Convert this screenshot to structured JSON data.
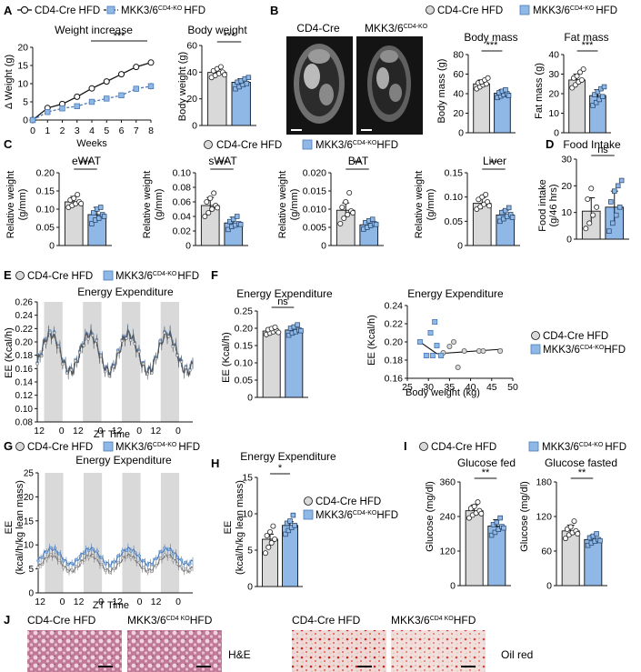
{
  "groups": {
    "ctrl": "CD4-Cre HFD",
    "ko_prefix": "MKK3/6",
    "ko_sup": "CD4-KO",
    "ko_suffix": "HFD",
    "ko_sup_j": "CD4 KO",
    "ctrl_color": "#d9d9d9",
    "ko_color": "#8fb8e6",
    "ko_line_color": "#4a7ab8"
  },
  "panels": {
    "A": {
      "letter": "A",
      "line": {
        "title": "Weight increase",
        "ylabel": "Δ Weight (g)",
        "xlabel": "Weeks",
        "sig": "***",
        "chart_data": {
          "type": "line",
          "x": [
            0,
            1,
            2,
            3,
            4,
            5,
            6,
            7,
            8
          ],
          "ylim": [
            0,
            20
          ],
          "yticks": [
            0,
            5,
            10,
            15,
            20
          ],
          "series": [
            {
              "name": "CD4-Cre HFD",
              "values": [
                0,
                3.3,
                4.4,
                6.4,
                8.7,
                10.6,
                12.6,
                14.6,
                15.8
              ],
              "err": [
                0.3,
                0.4,
                0.5,
                0.5,
                0.6,
                0.7,
                0.7,
                0.8,
                0.8
              ]
            },
            {
              "name": "MKK3/6 CD4-KO HFD",
              "values": [
                0,
                2.2,
                3.2,
                3.8,
                5.0,
                5.9,
                6.8,
                8.6,
                9.3
              ],
              "err": [
                0.3,
                0.3,
                0.4,
                0.4,
                0.5,
                0.6,
                0.6,
                0.8,
                0.9
              ]
            }
          ]
        }
      },
      "bar": {
        "title": "Body weight",
        "ylabel": "Body weight (g)",
        "sig": "***",
        "chart_data": {
          "type": "bar",
          "ylim": [
            0,
            60
          ],
          "yticks": [
            0,
            20,
            40,
            60
          ],
          "values": [
            39.8,
            32.4
          ],
          "err": [
            2.2,
            2.6
          ],
          "points": [
            [
              36,
              37.5,
              39,
              40,
              41,
              42.5,
              44,
              38
            ],
            [
              27.5,
              29,
              30.5,
              31.5,
              32.5,
              33.5,
              35,
              36
            ]
          ]
        }
      }
    },
    "B": {
      "letter": "B",
      "mri_labels": [
        "CD4-Cre",
        "MKK3/6"
      ],
      "mass": {
        "title": "Body mass",
        "ylabel": "Body mass (g)",
        "sig": "***",
        "chart_data": {
          "type": "bar",
          "ylim": [
            0,
            80
          ],
          "yticks": [
            0,
            20,
            40,
            60,
            80
          ],
          "values": [
            50,
            40.5
          ],
          "err": [
            4,
            3.5
          ],
          "points": [
            [
              45,
              47,
              49,
              50,
              51,
              52,
              54,
              56
            ],
            [
              36,
              37.5,
              39,
              40,
              41,
              42.5,
              44,
              38
            ]
          ]
        }
      },
      "fat": {
        "title": "Fat mass",
        "ylabel": "Fat mass (g)",
        "sig": "***",
        "chart_data": {
          "type": "bar",
          "ylim": [
            0,
            40
          ],
          "yticks": [
            0,
            10,
            20,
            30,
            40
          ],
          "values": [
            27,
            19
          ],
          "err": [
            3,
            3
          ],
          "points": [
            [
              23,
              24.5,
              26,
              27,
              28,
              29,
              31,
              32.5
            ],
            [
              14,
              15.5,
              17,
              18.5,
              19.5,
              21,
              22.5,
              23.5
            ]
          ]
        }
      }
    },
    "C": {
      "letter": "C",
      "ylabel1": "Relative weight",
      "ylabel2": "(g/mm)",
      "charts": [
        {
          "title": "eWAT",
          "sig": "***",
          "chart_data": {
            "type": "bar",
            "ylim": [
              0,
              0.2
            ],
            "yticks": [
              0,
              0.05,
              0.1,
              0.15,
              0.2
            ],
            "ticklabels": [
              "0",
              "0.05",
              "0.10",
              "0.15",
              "0.20"
            ],
            "values": [
              0.12,
              0.085
            ],
            "err": [
              0.015,
              0.02
            ],
            "points": [
              [
                0.105,
                0.11,
                0.115,
                0.12,
                0.125,
                0.13,
                0.14,
                0.115
              ],
              [
                0.06,
                0.07,
                0.075,
                0.085,
                0.09,
                0.1,
                0.105,
                0.08
              ]
            ]
          }
        },
        {
          "title": "sWAT",
          "sig": "***",
          "chart_data": {
            "type": "bar",
            "ylim": [
              0,
              0.1
            ],
            "yticks": [
              0,
              0.02,
              0.04,
              0.06,
              0.08,
              0.1
            ],
            "ticklabels": [
              "0",
              "0.02",
              "0.04",
              "0.06",
              "0.08",
              "0.10"
            ],
            "values": [
              0.055,
              0.031
            ],
            "err": [
              0.011,
              0.008
            ],
            "points": [
              [
                0.04,
                0.045,
                0.05,
                0.055,
                0.06,
                0.065,
                0.072,
                0.052
              ],
              [
                0.022,
                0.026,
                0.028,
                0.03,
                0.033,
                0.036,
                0.04,
                0.029
              ]
            ]
          }
        },
        {
          "title": "BAT",
          "sig": "**",
          "chart_data": {
            "type": "bar",
            "ylim": [
              0,
              0.02
            ],
            "yticks": [
              0,
              0.005,
              0.01,
              0.015,
              0.02
            ],
            "ticklabels": [
              "0",
              "0.005",
              "0.010",
              "0.015",
              "0.020"
            ],
            "values": [
              0.0097,
              0.0057
            ],
            "err": [
              0.002,
              0.001
            ],
            "points": [
              [
                0.006,
                0.0075,
                0.0085,
                0.0095,
                0.0105,
                0.012,
                0.0145,
                0.009
              ],
              [
                0.0045,
                0.005,
                0.0055,
                0.006,
                0.0063,
                0.0068,
                0.0072,
                0.0058
              ]
            ]
          }
        },
        {
          "title": "Liver",
          "sig": "**",
          "chart_data": {
            "type": "bar",
            "ylim": [
              0,
              0.15
            ],
            "yticks": [
              0,
              0.05,
              0.1,
              0.15
            ],
            "ticklabels": [
              "0",
              "0.05",
              "0.10",
              "0.15"
            ],
            "values": [
              0.087,
              0.063
            ],
            "err": [
              0.012,
              0.01
            ],
            "points": [
              [
                0.075,
                0.08,
                0.085,
                0.09,
                0.095,
                0.1,
                0.105,
                0.082
              ],
              [
                0.05,
                0.055,
                0.06,
                0.064,
                0.068,
                0.072,
                0.078,
                0.058
              ]
            ]
          }
        }
      ]
    },
    "D": {
      "letter": "D",
      "title": "Food Intake",
      "ylabel1": "Food intake",
      "ylabel2": "(g/46 hrs)",
      "sig": "ns",
      "chart_data": {
        "type": "bar",
        "ylim": [
          0,
          30
        ],
        "yticks": [
          0,
          10,
          20,
          30
        ],
        "values": [
          10.5,
          12
        ],
        "err": [
          5,
          6
        ],
        "points": [
          [
            4,
            6,
            9,
            12,
            15,
            19
          ],
          [
            3,
            6,
            9,
            12,
            14,
            18,
            20,
            22
          ]
        ]
      }
    },
    "E": {
      "letter": "E",
      "title": "Energy Expenditure",
      "ylabel": "EE (Kcal/h)",
      "xlabel": "ZT Time",
      "chart_data": {
        "type": "line",
        "ylim": [
          0.08,
          0.26
        ],
        "yticks": [
          0.08,
          0.1,
          0.12,
          0.14,
          0.16,
          0.18,
          0.2,
          0.22,
          0.24,
          0.26
        ],
        "ticklabels": [
          "0.08",
          "0.10",
          "0.12",
          "0.14",
          "0.16",
          "0.18",
          "0.20",
          "0.22",
          "0.24",
          "0.26"
        ],
        "xticklabels": [
          "12",
          "0",
          "12",
          "0",
          "12",
          "0",
          "12",
          "0"
        ],
        "pattern": "overlapping-circadian",
        "base": 0.185,
        "amp": 0.028
      }
    },
    "F": {
      "letter": "F",
      "bar": {
        "title": "Energy Expenditure",
        "ylabel": "EE (Kcal/h)",
        "sig": "ns",
        "chart_data": {
          "type": "bar",
          "ylim": [
            0,
            0.25
          ],
          "yticks": [
            0,
            0.05,
            0.1,
            0.15,
            0.2,
            0.25
          ],
          "ticklabels": [
            "0",
            "0.05",
            "0.10",
            "0.15",
            "0.20",
            "0.25"
          ],
          "values": [
            0.192,
            0.195
          ],
          "err": [
            0.008,
            0.01
          ],
          "points": [
            [
              0.182,
              0.186,
              0.19,
              0.193,
              0.196,
              0.199,
              0.203,
              0.188
            ],
            [
              0.18,
              0.186,
              0.19,
              0.195,
              0.2,
              0.204,
              0.21,
              0.193
            ]
          ]
        }
      },
      "scatter": {
        "title": "Energy Expenditure",
        "ylabel": "EE (Kcal/h)",
        "xlabel": "Body weight (kg)",
        "chart_data": {
          "type": "scatter",
          "xlim": [
            25,
            50
          ],
          "ylim": [
            0.16,
            0.24
          ],
          "xticks": [
            25,
            30,
            35,
            40,
            45,
            50
          ],
          "yticks": [
            0.16,
            0.18,
            0.2,
            0.22,
            0.24
          ],
          "ticklabels": [
            "0.16",
            "0.18",
            "0.20",
            "0.22",
            "0.24"
          ],
          "series": [
            {
              "name": "CD4-Cre HFD",
              "x": [
                33.5,
                35,
                36,
                37,
                38.5,
                42,
                43,
                47
              ],
              "y": [
                0.188,
                0.195,
                0.2,
                0.172,
                0.19,
                0.19,
                0.19,
                0.19
              ],
              "fit": [
                [
                  32,
                  0.187
                ],
                [
                  47.5,
                  0.192
                ]
              ]
            },
            {
              "name": "MKK3/6 CD4-KO HFD",
              "x": [
                28,
                29.5,
                30.5,
                31,
                32,
                33,
                31.5
              ],
              "y": [
                0.2,
                0.185,
                0.21,
                0.185,
                0.196,
                0.185,
                0.222
              ],
              "fit": [
                [
                  28,
                  0.2
                ],
                [
                  32,
                  0.187
                ]
              ]
            }
          ]
        }
      }
    },
    "G": {
      "letter": "G",
      "title": "Energy Expenditure",
      "ylabel1": "EE",
      "ylabel2": "(kcal/h/kg lean mass)",
      "xlabel": "ZT Time",
      "chart_data": {
        "type": "line",
        "ylim": [
          0,
          25
        ],
        "yticks": [
          0,
          5,
          10,
          15,
          20,
          25
        ],
        "xticklabels": [
          "12",
          "0",
          "12",
          "0",
          "12",
          "0",
          "12",
          "0"
        ],
        "series": [
          {
            "name": "CD4-Cre HFD",
            "base": 6.2,
            "amp": 1.6
          },
          {
            "name": "MKK3/6 CD4-KO HFD",
            "base": 7.6,
            "amp": 1.6
          }
        ]
      }
    },
    "H": {
      "letter": "H",
      "title": "Energy Expenditure",
      "ylabel1": "EE",
      "ylabel2": "(kcal/h/kg lean mass)",
      "sig": "*",
      "chart_data": {
        "type": "bar",
        "ylim": [
          0,
          15
        ],
        "yticks": [
          0,
          5,
          10,
          15
        ],
        "values": [
          6.5,
          8.4
        ],
        "err": [
          0.7,
          0.5
        ],
        "points": [
          [
            4.6,
            5.4,
            6,
            6.5,
            7,
            7.5,
            8.3
          ],
          [
            7.2,
            7.7,
            8.1,
            8.4,
            8.7,
            9,
            9.8
          ]
        ]
      }
    },
    "I": {
      "letter": "I",
      "fed": {
        "title": "Glucose fed",
        "ylabel": "Glucose (mg/dl)",
        "sig": "**",
        "chart_data": {
          "type": "bar",
          "ylim": [
            0,
            360
          ],
          "yticks": [
            0,
            120,
            240,
            360
          ],
          "values": [
            260,
            207
          ],
          "err": [
            20,
            22
          ],
          "points": [
            [
              235,
              245,
              252,
              260,
              268,
              275,
              290,
              250
            ],
            [
              175,
              185,
              195,
              205,
              212,
              220,
              235,
              200
            ]
          ]
        }
      },
      "fasted": {
        "title": "Glucose fasted",
        "ylabel": "Glucose (mg/dl)",
        "sig": "**",
        "chart_data": {
          "type": "bar",
          "ylim": [
            0,
            180
          ],
          "yticks": [
            0,
            60,
            120,
            180
          ],
          "values": [
            95,
            80
          ],
          "err": [
            10,
            7
          ],
          "points": [
            [
              82,
              88,
              92,
              95,
              98,
              102,
              112,
              90
            ],
            [
              70,
              74,
              77,
              80,
              83,
              86,
              90,
              78
            ]
          ]
        }
      }
    },
    "J": {
      "letter": "J",
      "stain1": "H&E",
      "stain2": "Oil red"
    }
  }
}
